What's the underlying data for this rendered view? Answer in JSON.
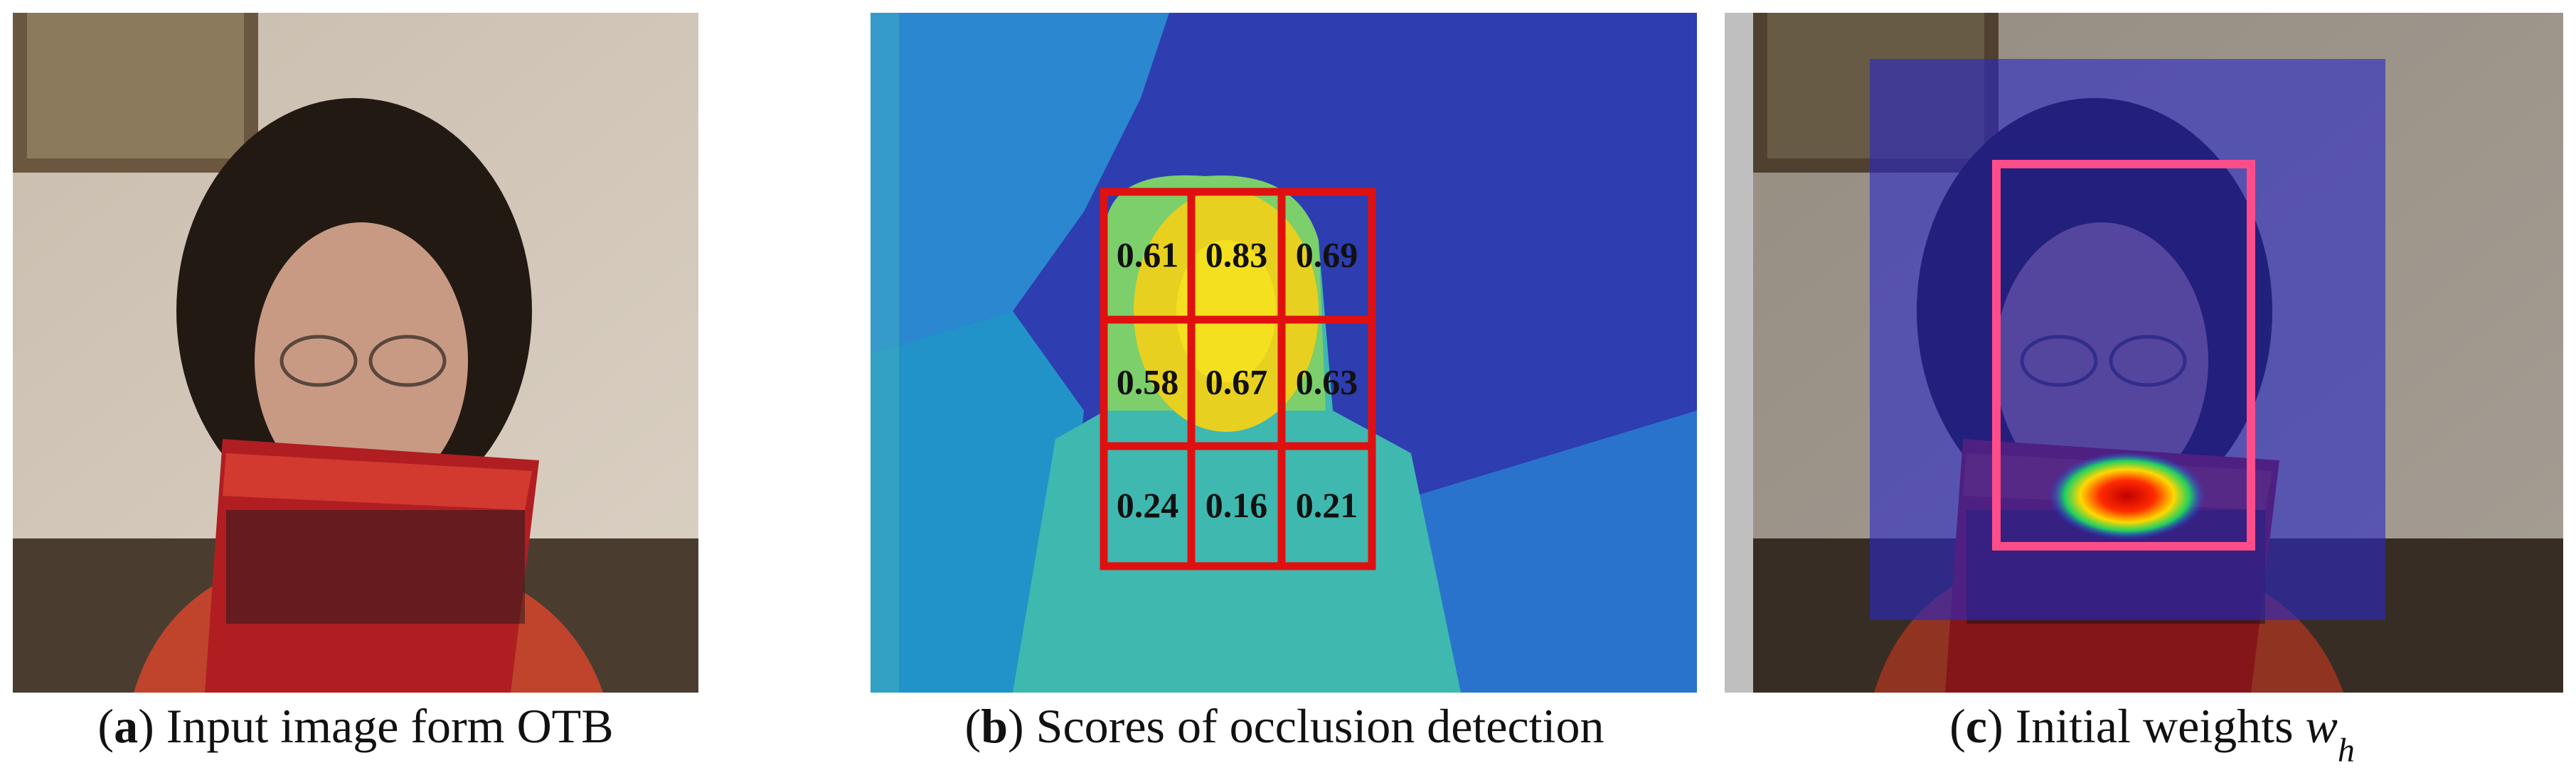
{
  "panels": [
    {
      "caption": [
        "(",
        "a",
        ") Input image form OTB"
      ]
    },
    {
      "caption": [
        "(",
        "b",
        ") Scores of occlusion detection"
      ],
      "scores": [
        [
          "0.61",
          "0.83",
          "0.69"
        ],
        [
          "0.58",
          "0.67",
          "0.63"
        ],
        [
          "0.24",
          "0.16",
          "0.21"
        ]
      ]
    },
    {
      "caption": [
        "(",
        "c",
        ") Initial weights ",
        "w",
        "h"
      ]
    }
  ]
}
